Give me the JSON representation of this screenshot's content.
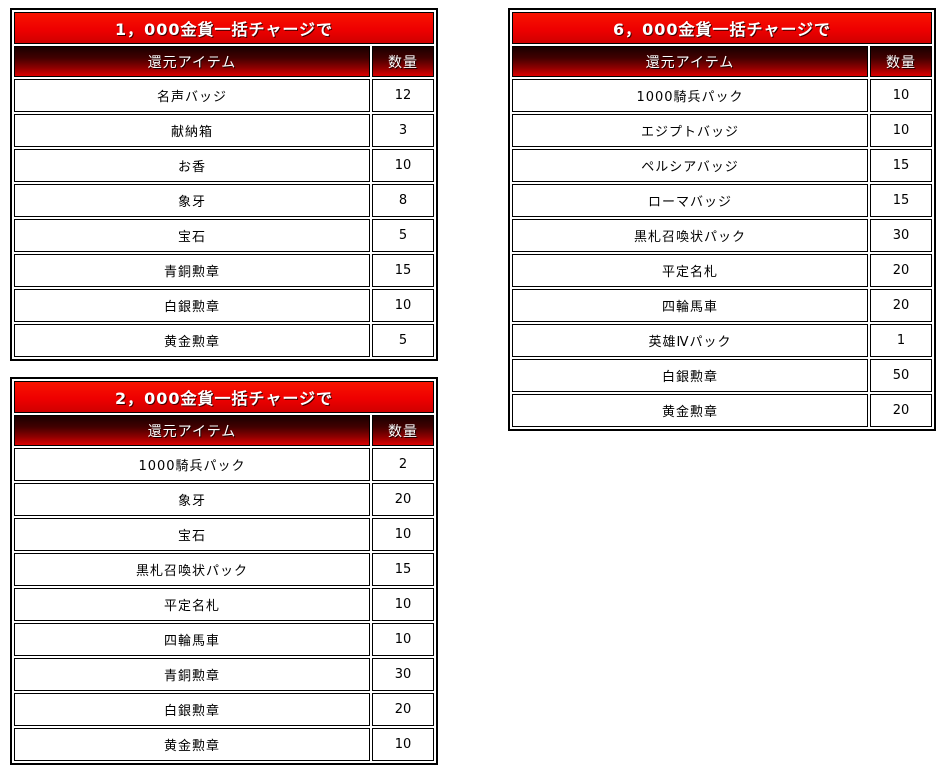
{
  "page": {
    "background_color": "#ffffff",
    "description_colors": {
      "title_bar_red": "#ee0000",
      "header_gradient_top": "#1a0000",
      "header_gradient_bottom": "#dd0000",
      "border_black": "#000000",
      "text_white": "#ffffff",
      "text_black": "#000000"
    }
  },
  "tables": [
    {
      "title": "1，000金貨一括チャージで",
      "columns": {
        "item": "還元アイテム",
        "qty": "数量"
      },
      "rows": [
        {
          "item": "名声バッジ",
          "qty": "12"
        },
        {
          "item": "献納箱",
          "qty": "3"
        },
        {
          "item": "お香",
          "qty": "10"
        },
        {
          "item": "象牙",
          "qty": "8"
        },
        {
          "item": "宝石",
          "qty": "5"
        },
        {
          "item": "青銅勲章",
          "qty": "15"
        },
        {
          "item": "白銀勲章",
          "qty": "10"
        },
        {
          "item": "黄金勲章",
          "qty": "5"
        }
      ]
    },
    {
      "title": "2，000金貨一括チャージで",
      "columns": {
        "item": "還元アイテム",
        "qty": "数量"
      },
      "rows": [
        {
          "item": "1000騎兵パック",
          "qty": "2"
        },
        {
          "item": "象牙",
          "qty": "20"
        },
        {
          "item": "宝石",
          "qty": "10"
        },
        {
          "item": "黒札召喚状パック",
          "qty": "15"
        },
        {
          "item": "平定名札",
          "qty": "10"
        },
        {
          "item": "四輪馬車",
          "qty": "10"
        },
        {
          "item": "青銅勲章",
          "qty": "30"
        },
        {
          "item": "白銀勲章",
          "qty": "20"
        },
        {
          "item": "黄金勲章",
          "qty": "10"
        }
      ]
    },
    {
      "title": "6，000金貨一括チャージで",
      "columns": {
        "item": "還元アイテム",
        "qty": "数量"
      },
      "rows": [
        {
          "item": "1000騎兵パック",
          "qty": "10"
        },
        {
          "item": "エジプトバッジ",
          "qty": "10"
        },
        {
          "item": "ペルシアバッジ",
          "qty": "15"
        },
        {
          "item": "ローマバッジ",
          "qty": "15"
        },
        {
          "item": "黒札召喚状パック",
          "qty": "30"
        },
        {
          "item": "平定名札",
          "qty": "20"
        },
        {
          "item": "四輪馬車",
          "qty": "20"
        },
        {
          "item": "英雄Ⅳパック",
          "qty": "1"
        },
        {
          "item": "白銀勲章",
          "qty": "50"
        },
        {
          "item": "黄金勲章",
          "qty": "20"
        }
      ]
    }
  ]
}
